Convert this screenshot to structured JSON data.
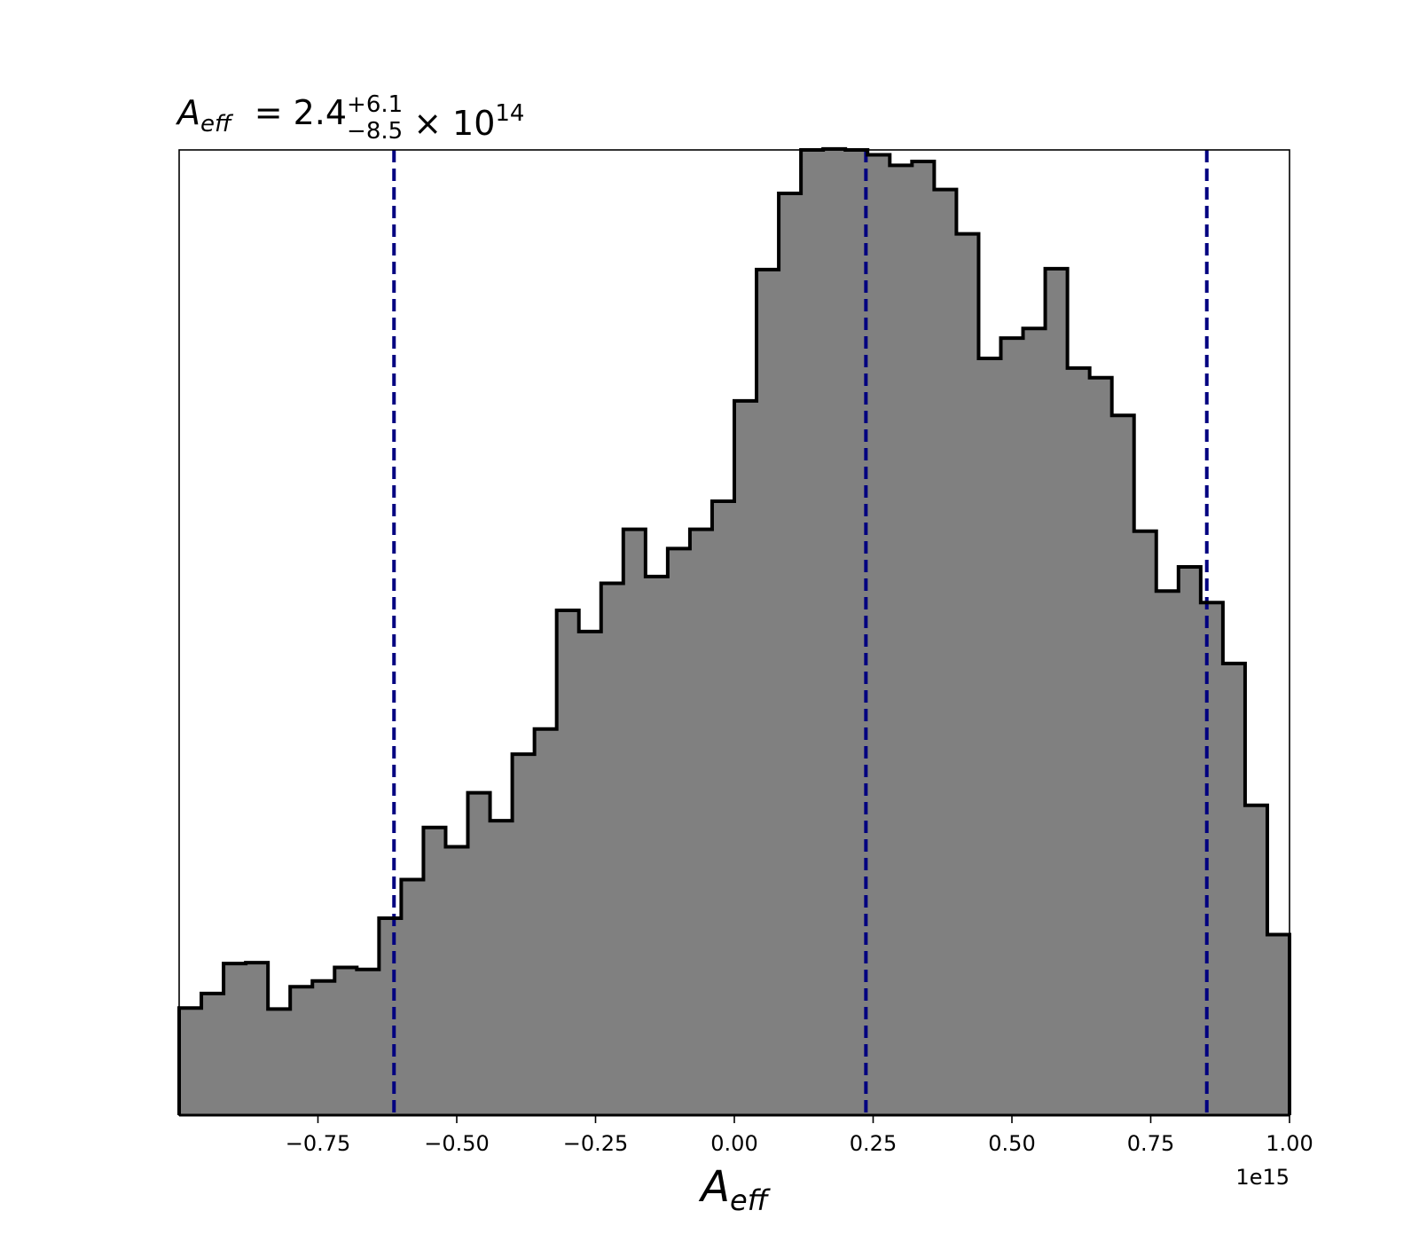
{
  "chart_data": {
    "type": "histogram",
    "title": {
      "symbol": "A",
      "symbol_sub": "eff",
      "equals": "=",
      "value": "2.4",
      "upper": "+6.1",
      "lower": "−8.5",
      "times": "×",
      "base": "10",
      "exponent": "14"
    },
    "xlabel": {
      "symbol": "A",
      "symbol_sub": "eff"
    },
    "ylabel": "",
    "offset_text": "1e15",
    "xlim": [
      -1.0,
      1.0
    ],
    "ylim": [
      0,
      1.0
    ],
    "x_ticks": [
      -0.75,
      -0.5,
      -0.25,
      0.0,
      0.25,
      0.5,
      0.75,
      1.0
    ],
    "x_tick_labels": [
      "−0.75",
      "−0.50",
      "−0.25",
      "0.00",
      "0.25",
      "0.50",
      "0.75",
      "1.00"
    ],
    "y_ticks_visible": false,
    "grid": false,
    "bin_edges": [
      -1.0,
      -0.96,
      -0.92,
      -0.88,
      -0.84,
      -0.8,
      -0.76,
      -0.72,
      -0.68,
      -0.64,
      -0.6,
      -0.56,
      -0.52,
      -0.48,
      -0.44,
      -0.4,
      -0.36,
      -0.32,
      -0.28,
      -0.24,
      -0.2,
      -0.16,
      -0.12,
      -0.08,
      -0.04,
      0.0,
      0.04,
      0.08,
      0.12,
      0.16,
      0.2,
      0.24,
      0.28,
      0.32,
      0.36,
      0.4,
      0.44,
      0.48,
      0.52,
      0.56,
      0.6,
      0.64,
      0.68,
      0.72,
      0.76,
      0.8,
      0.84,
      0.88,
      0.92,
      0.96,
      1.0
    ],
    "counts": [
      0.111,
      0.126,
      0.157,
      0.158,
      0.11,
      0.133,
      0.139,
      0.153,
      0.151,
      0.204,
      0.244,
      0.298,
      0.278,
      0.334,
      0.305,
      0.374,
      0.4,
      0.523,
      0.501,
      0.551,
      0.607,
      0.558,
      0.587,
      0.607,
      0.636,
      0.74,
      0.876,
      0.955,
      1.0,
      1.001,
      1.0,
      0.995,
      0.984,
      0.988,
      0.959,
      0.913,
      0.784,
      0.805,
      0.815,
      0.877,
      0.774,
      0.764,
      0.725,
      0.605,
      0.543,
      0.568,
      0.531,
      0.468,
      0.321,
      0.187
    ],
    "fill_color": "#808080",
    "edge_color": "#000000",
    "vlines": [
      {
        "x": -0.613
      },
      {
        "x": 0.237
      },
      {
        "x": 0.851
      }
    ],
    "vline_color": "#000080",
    "vline_style": "dashed"
  }
}
